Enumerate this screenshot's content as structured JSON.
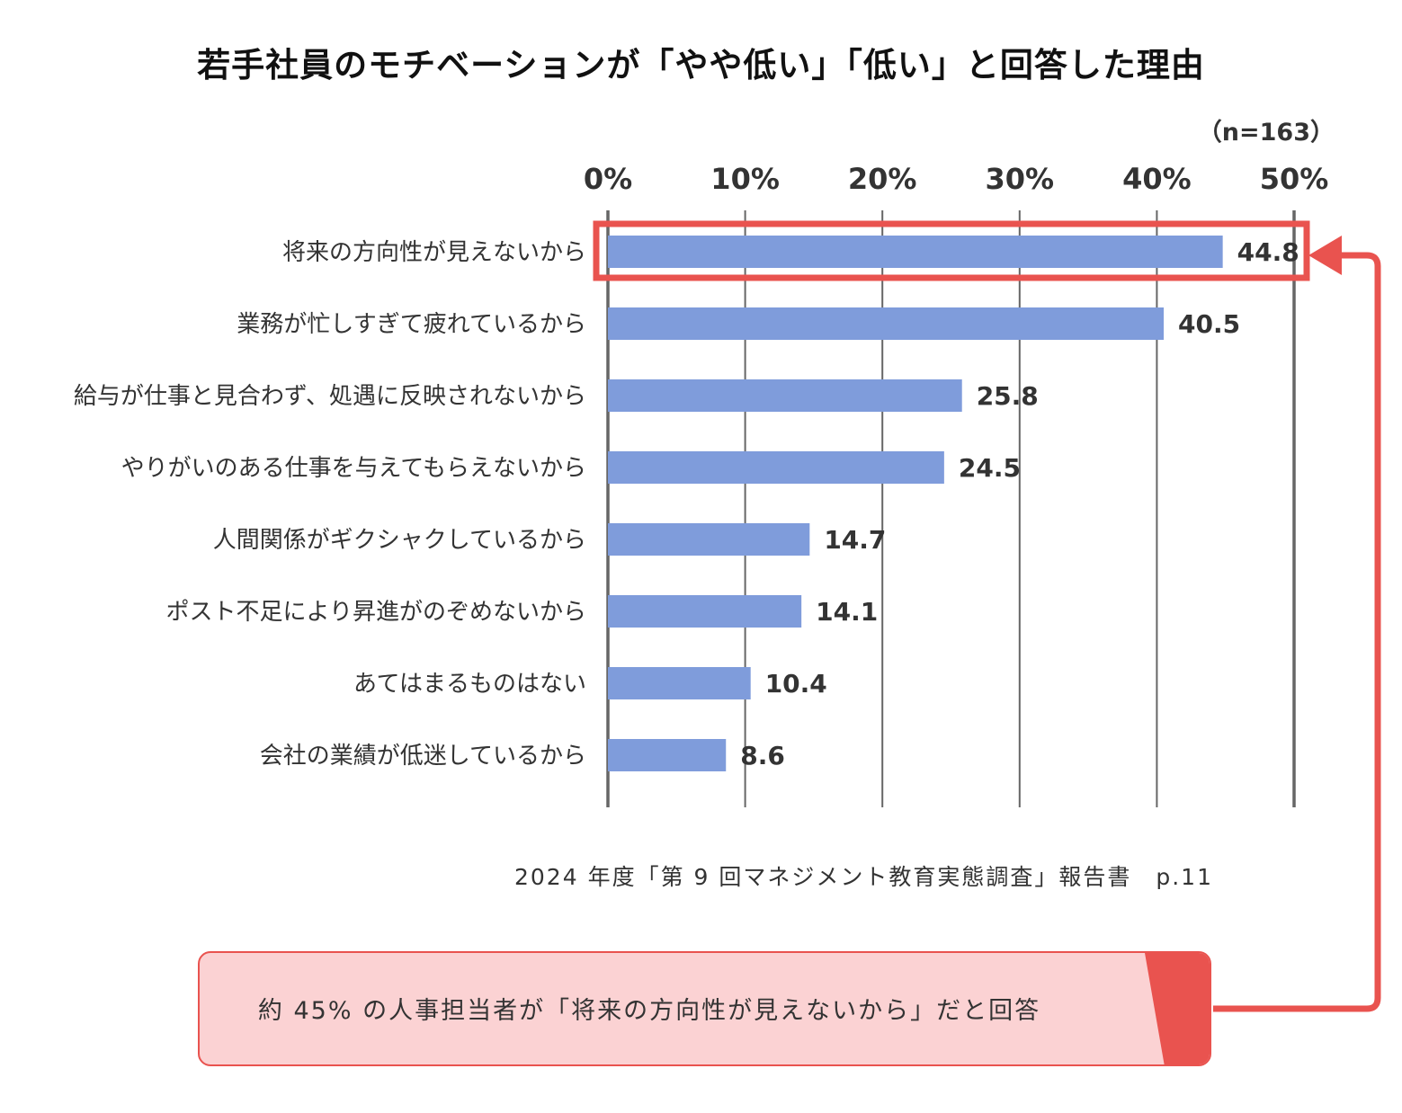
{
  "chart_data": {
    "type": "bar",
    "orientation": "horizontal",
    "title": "若手社員のモチベーションが「やや低い」「低い」と回答した理由",
    "sample_size": "（n=163）",
    "categories": [
      "将来の方向性が見えないから",
      "業務が忙しすぎて疲れているから",
      "給与が仕事と見合わず、処遇に反映されないから",
      "やりがいのある仕事を与えてもらえないから",
      "人間関係がギクシャクしているから",
      "ポスト不足により昇進がのぞめないから",
      "あてはまるものはない",
      "会社の業績が低迷しているから"
    ],
    "values": [
      44.8,
      40.5,
      25.8,
      24.5,
      14.7,
      14.1,
      10.4,
      8.6
    ],
    "value_labels": [
      "44.8",
      "40.5",
      "25.8",
      "24.5",
      "14.7",
      "14.1",
      "10.4",
      "8.6"
    ],
    "xlim": [
      0,
      50
    ],
    "xticks": [
      0,
      10,
      20,
      30,
      40,
      50
    ],
    "xtick_labels": [
      "0%",
      "10%",
      "20%",
      "30%",
      "40%",
      "50%"
    ],
    "axis_position": "top",
    "grid": true,
    "highlight_index": 0
  },
  "colors": {
    "bar": "#7f9cdb",
    "grid": "#666666",
    "highlight": "#e9534f",
    "callout_bg": "#fbd2d3"
  },
  "source": "2024 年度「第 9 回マネジメント教育実態調査」報告書　p.11",
  "callout": {
    "text": "約 45% の人事担当者が「将来の方向性が見えないから」だと回答"
  }
}
